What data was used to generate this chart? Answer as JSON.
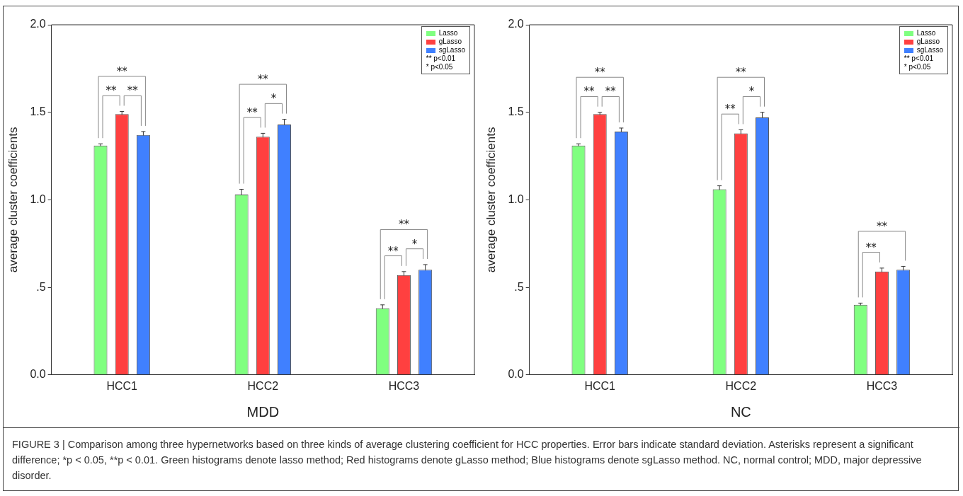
{
  "chart_data": [
    {
      "type": "bar",
      "xlabel": "MDD",
      "ylabel": "average cluster coefficients",
      "categories": [
        "HCC1",
        "HCC2",
        "HCC3"
      ],
      "series": [
        {
          "name": "Lasso",
          "color": "#80ff80",
          "values": [
            1.31,
            1.03,
            0.38
          ],
          "errors": [
            0.01,
            0.03,
            0.02
          ]
        },
        {
          "name": "gLasso",
          "color": "#ff4040",
          "values": [
            1.49,
            1.36,
            0.57
          ],
          "errors": [
            0.015,
            0.02,
            0.02
          ]
        },
        {
          "name": "sgLasso",
          "color": "#4080ff",
          "values": [
            1.37,
            1.43,
            0.6
          ],
          "errors": [
            0.02,
            0.03,
            0.03
          ]
        }
      ],
      "ylim": [
        0,
        2
      ],
      "yticks": [
        {
          "value": 0,
          "label": "0.0"
        },
        {
          "value": 0.5,
          "label": ".5"
        },
        {
          "value": 1,
          "label": "1.0"
        },
        {
          "value": 1.5,
          "label": "1.5"
        },
        {
          "value": 2,
          "label": "2.0"
        }
      ],
      "grid": false,
      "legend": "top right",
      "annotations": [
        "** p<0.01",
        "* p<0.05",
        "**",
        "**",
        "**",
        "**",
        "**",
        "*",
        "**",
        "**",
        "*"
      ]
    },
    {
      "type": "bar",
      "xlabel": "NC",
      "ylabel": "average cluster coefficients",
      "categories": [
        "HCC1",
        "HCC2",
        "HCC3"
      ],
      "series": [
        {
          "name": "Lasso",
          "color": "#80ff80",
          "values": [
            1.31,
            1.06,
            0.4
          ],
          "errors": [
            0.01,
            0.02,
            0.01
          ]
        },
        {
          "name": "gLasso",
          "color": "#ff4040",
          "values": [
            1.49,
            1.38,
            0.59
          ],
          "errors": [
            0.01,
            0.02,
            0.02
          ]
        },
        {
          "name": "sgLasso",
          "color": "#4080ff",
          "values": [
            1.39,
            1.47,
            0.6
          ],
          "errors": [
            0.02,
            0.03,
            0.02
          ]
        }
      ],
      "ylim": [
        0,
        2
      ],
      "yticks": [
        {
          "value": 0,
          "label": "0.0"
        },
        {
          "value": 0.5,
          "label": ".5"
        },
        {
          "value": 1,
          "label": "1.0"
        },
        {
          "value": 1.5,
          "label": "1.5"
        },
        {
          "value": 2,
          "label": "2.0"
        }
      ],
      "grid": false,
      "legend": "top right",
      "annotations": [
        "** p<0.01",
        "* p<0.05",
        "**",
        "**",
        "**",
        "**",
        "**",
        "*",
        "**",
        "**"
      ]
    },
    {
      "type": "other",
      "annotations": [
        "FIGURE 3 | Comparison among three hypernetworks based on three kinds of average clustering coefficient for HCC properties. Error bars indicate standard deviation. Asterisks represent a significant difference; *p < 0.05, **p < 0.01. Green histograms denote lasso method; Red histograms denote gLasso method; Blue histograms denote sgLasso method. NC, normal control; MDD, major depressive disorder."
      ]
    }
  ]
}
